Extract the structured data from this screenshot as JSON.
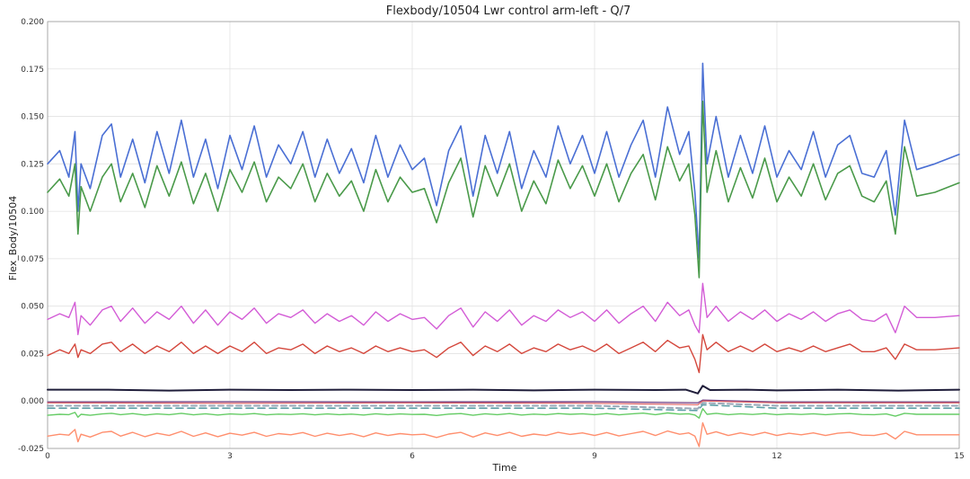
{
  "chart_data": {
    "type": "line",
    "title": "Flexbody/10504 Lwr control arm-left - Q/7",
    "xlabel": "Time",
    "ylabel": "Flex_Body/10504",
    "xlim": [
      0,
      15
    ],
    "ylim": [
      -0.025,
      0.2
    ],
    "xticks": [
      0,
      3,
      6,
      9,
      12,
      15
    ],
    "yticks": [
      -0.025,
      0.0,
      0.025,
      0.05,
      0.075,
      0.1,
      0.125,
      0.15,
      0.175,
      0.2
    ],
    "xtick_labels": [
      "0",
      "3",
      "6",
      "9",
      "12",
      "15"
    ],
    "ytick_labels": [
      "-0.025",
      "0.000",
      "0.025",
      "0.050",
      "0.075",
      "0.100",
      "0.125",
      "0.150",
      "0.175",
      "0.200"
    ],
    "grid": true,
    "legend": false,
    "series": [
      {
        "color": "#4a6fd4",
        "width": 1.6,
        "x": [
          0,
          0.2,
          0.35,
          0.45,
          0.5,
          0.55,
          0.7,
          0.9,
          1.05,
          1.2,
          1.4,
          1.6,
          1.8,
          2.0,
          2.2,
          2.4,
          2.6,
          2.8,
          3.0,
          3.2,
          3.4,
          3.6,
          3.8,
          4.0,
          4.2,
          4.4,
          4.6,
          4.8,
          5.0,
          5.2,
          5.4,
          5.6,
          5.8,
          6.0,
          6.2,
          6.4,
          6.6,
          6.8,
          7.0,
          7.2,
          7.4,
          7.6,
          7.8,
          8.0,
          8.2,
          8.4,
          8.6,
          8.8,
          9.0,
          9.2,
          9.4,
          9.6,
          9.8,
          10.0,
          10.2,
          10.4,
          10.55,
          10.65,
          10.72,
          10.78,
          10.85,
          11.0,
          11.2,
          11.4,
          11.6,
          11.8,
          12.0,
          12.2,
          12.4,
          12.6,
          12.8,
          13.0,
          13.2,
          13.4,
          13.6,
          13.8,
          13.95,
          14.1,
          14.3,
          14.6,
          15.0
        ],
        "y": [
          0.125,
          0.132,
          0.118,
          0.142,
          0.1,
          0.125,
          0.112,
          0.14,
          0.146,
          0.118,
          0.138,
          0.115,
          0.142,
          0.12,
          0.148,
          0.118,
          0.138,
          0.112,
          0.14,
          0.122,
          0.145,
          0.118,
          0.135,
          0.125,
          0.142,
          0.118,
          0.138,
          0.12,
          0.133,
          0.115,
          0.14,
          0.118,
          0.135,
          0.122,
          0.128,
          0.103,
          0.132,
          0.145,
          0.108,
          0.14,
          0.12,
          0.142,
          0.112,
          0.132,
          0.118,
          0.145,
          0.125,
          0.14,
          0.12,
          0.142,
          0.118,
          0.135,
          0.148,
          0.118,
          0.155,
          0.13,
          0.142,
          0.11,
          0.075,
          0.178,
          0.125,
          0.15,
          0.118,
          0.14,
          0.12,
          0.145,
          0.118,
          0.132,
          0.122,
          0.142,
          0.118,
          0.135,
          0.14,
          0.12,
          0.118,
          0.132,
          0.098,
          0.148,
          0.122,
          0.125,
          0.13
        ]
      },
      {
        "color": "#4a9a4a",
        "width": 1.6,
        "x": [
          0,
          0.2,
          0.35,
          0.45,
          0.5,
          0.55,
          0.7,
          0.9,
          1.05,
          1.2,
          1.4,
          1.6,
          1.8,
          2.0,
          2.2,
          2.4,
          2.6,
          2.8,
          3.0,
          3.2,
          3.4,
          3.6,
          3.8,
          4.0,
          4.2,
          4.4,
          4.6,
          4.8,
          5.0,
          5.2,
          5.4,
          5.6,
          5.8,
          6.0,
          6.2,
          6.4,
          6.6,
          6.8,
          7.0,
          7.2,
          7.4,
          7.6,
          7.8,
          8.0,
          8.2,
          8.4,
          8.6,
          8.8,
          9.0,
          9.2,
          9.4,
          9.6,
          9.8,
          10.0,
          10.2,
          10.4,
          10.55,
          10.65,
          10.72,
          10.78,
          10.85,
          11.0,
          11.2,
          11.4,
          11.6,
          11.8,
          12.0,
          12.2,
          12.4,
          12.6,
          12.8,
          13.0,
          13.2,
          13.4,
          13.6,
          13.8,
          13.95,
          14.1,
          14.3,
          14.6,
          15.0
        ],
        "y": [
          0.11,
          0.117,
          0.108,
          0.125,
          0.088,
          0.113,
          0.1,
          0.118,
          0.125,
          0.105,
          0.12,
          0.102,
          0.124,
          0.108,
          0.126,
          0.104,
          0.12,
          0.1,
          0.122,
          0.11,
          0.126,
          0.105,
          0.118,
          0.112,
          0.125,
          0.105,
          0.12,
          0.108,
          0.116,
          0.1,
          0.122,
          0.105,
          0.118,
          0.11,
          0.112,
          0.094,
          0.115,
          0.128,
          0.097,
          0.124,
          0.108,
          0.125,
          0.1,
          0.116,
          0.104,
          0.127,
          0.112,
          0.124,
          0.108,
          0.125,
          0.105,
          0.12,
          0.13,
          0.106,
          0.134,
          0.116,
          0.125,
          0.098,
          0.065,
          0.158,
          0.11,
          0.132,
          0.105,
          0.123,
          0.107,
          0.128,
          0.105,
          0.118,
          0.108,
          0.125,
          0.106,
          0.12,
          0.124,
          0.108,
          0.105,
          0.116,
          0.088,
          0.134,
          0.108,
          0.11,
          0.115
        ]
      },
      {
        "color": "#d35cd6",
        "width": 1.4,
        "x": [
          0,
          0.2,
          0.35,
          0.45,
          0.5,
          0.55,
          0.7,
          0.9,
          1.05,
          1.2,
          1.4,
          1.6,
          1.8,
          2.0,
          2.2,
          2.4,
          2.6,
          2.8,
          3.0,
          3.2,
          3.4,
          3.6,
          3.8,
          4.0,
          4.2,
          4.4,
          4.6,
          4.8,
          5.0,
          5.2,
          5.4,
          5.6,
          5.8,
          6.0,
          6.2,
          6.4,
          6.6,
          6.8,
          7.0,
          7.2,
          7.4,
          7.6,
          7.8,
          8.0,
          8.2,
          8.4,
          8.6,
          8.8,
          9.0,
          9.2,
          9.4,
          9.6,
          9.8,
          10.0,
          10.2,
          10.4,
          10.55,
          10.65,
          10.72,
          10.78,
          10.85,
          11.0,
          11.2,
          11.4,
          11.6,
          11.8,
          12.0,
          12.2,
          12.4,
          12.6,
          12.8,
          13.0,
          13.2,
          13.4,
          13.6,
          13.8,
          13.95,
          14.1,
          14.3,
          14.6,
          15.0
        ],
        "y": [
          0.043,
          0.046,
          0.044,
          0.052,
          0.035,
          0.045,
          0.04,
          0.048,
          0.05,
          0.042,
          0.049,
          0.041,
          0.047,
          0.043,
          0.05,
          0.041,
          0.048,
          0.04,
          0.047,
          0.043,
          0.049,
          0.041,
          0.046,
          0.044,
          0.048,
          0.041,
          0.046,
          0.042,
          0.045,
          0.04,
          0.047,
          0.042,
          0.046,
          0.043,
          0.044,
          0.038,
          0.045,
          0.049,
          0.039,
          0.047,
          0.042,
          0.048,
          0.04,
          0.045,
          0.042,
          0.048,
          0.044,
          0.047,
          0.042,
          0.048,
          0.041,
          0.046,
          0.05,
          0.042,
          0.052,
          0.045,
          0.048,
          0.04,
          0.036,
          0.062,
          0.044,
          0.05,
          0.042,
          0.047,
          0.043,
          0.048,
          0.042,
          0.046,
          0.043,
          0.047,
          0.042,
          0.046,
          0.048,
          0.043,
          0.042,
          0.046,
          0.036,
          0.05,
          0.044,
          0.044,
          0.045
        ]
      },
      {
        "color": "#d4473c",
        "width": 1.4,
        "x": [
          0,
          0.2,
          0.35,
          0.45,
          0.5,
          0.55,
          0.7,
          0.9,
          1.05,
          1.2,
          1.4,
          1.6,
          1.8,
          2.0,
          2.2,
          2.4,
          2.6,
          2.8,
          3.0,
          3.2,
          3.4,
          3.6,
          3.8,
          4.0,
          4.2,
          4.4,
          4.6,
          4.8,
          5.0,
          5.2,
          5.4,
          5.6,
          5.8,
          6.0,
          6.2,
          6.4,
          6.6,
          6.8,
          7.0,
          7.2,
          7.4,
          7.6,
          7.8,
          8.0,
          8.2,
          8.4,
          8.6,
          8.8,
          9.0,
          9.2,
          9.4,
          9.6,
          9.8,
          10.0,
          10.2,
          10.4,
          10.55,
          10.65,
          10.72,
          10.78,
          10.85,
          11.0,
          11.2,
          11.4,
          11.6,
          11.8,
          12.0,
          12.2,
          12.4,
          12.6,
          12.8,
          13.0,
          13.2,
          13.4,
          13.6,
          13.8,
          13.95,
          14.1,
          14.3,
          14.6,
          15.0
        ],
        "y": [
          0.024,
          0.027,
          0.025,
          0.03,
          0.023,
          0.027,
          0.025,
          0.03,
          0.031,
          0.026,
          0.03,
          0.025,
          0.029,
          0.026,
          0.031,
          0.025,
          0.029,
          0.025,
          0.029,
          0.026,
          0.031,
          0.025,
          0.028,
          0.027,
          0.03,
          0.025,
          0.029,
          0.026,
          0.028,
          0.025,
          0.029,
          0.026,
          0.028,
          0.026,
          0.027,
          0.023,
          0.028,
          0.031,
          0.024,
          0.029,
          0.026,
          0.03,
          0.025,
          0.028,
          0.026,
          0.03,
          0.027,
          0.029,
          0.026,
          0.03,
          0.025,
          0.028,
          0.031,
          0.026,
          0.032,
          0.028,
          0.029,
          0.022,
          0.015,
          0.035,
          0.027,
          0.031,
          0.026,
          0.029,
          0.026,
          0.03,
          0.026,
          0.028,
          0.026,
          0.029,
          0.026,
          0.028,
          0.03,
          0.026,
          0.026,
          0.028,
          0.022,
          0.03,
          0.027,
          0.027,
          0.028
        ]
      },
      {
        "color": "#1f1d3a",
        "width": 2.0,
        "x": [
          0,
          1,
          2,
          3,
          4,
          5,
          6,
          7,
          8,
          9,
          10,
          10.5,
          10.7,
          10.78,
          10.9,
          11.5,
          12,
          13,
          14,
          15
        ],
        "y": [
          0.006,
          0.006,
          0.0055,
          0.006,
          0.0058,
          0.006,
          0.0058,
          0.006,
          0.0056,
          0.006,
          0.0058,
          0.006,
          0.004,
          0.008,
          0.0058,
          0.006,
          0.0056,
          0.006,
          0.0055,
          0.006
        ]
      },
      {
        "color": "#7a4a8c",
        "width": 1.4,
        "x": [
          0,
          3,
          6,
          9,
          10.7,
          10.78,
          12,
          15
        ],
        "y": [
          -0.0005,
          -0.0004,
          -0.0005,
          -0.0004,
          -0.001,
          0.0005,
          -0.0005,
          -0.0005
        ]
      },
      {
        "color": "#e05f5f",
        "width": 1.1,
        "x": [
          0,
          3,
          6,
          9,
          10.7,
          10.78,
          12,
          15
        ],
        "y": [
          -0.001,
          -0.0012,
          -0.001,
          -0.0012,
          -0.002,
          0.0,
          -0.001,
          -0.001
        ]
      },
      {
        "color": "#9aa8b8",
        "width": 2.0,
        "dash": "6,4",
        "x": [
          0,
          3,
          6,
          9,
          10.7,
          10.78,
          12,
          15
        ],
        "y": [
          -0.0025,
          -0.0025,
          -0.0025,
          -0.0025,
          -0.004,
          -0.001,
          -0.0025,
          -0.0025
        ]
      },
      {
        "color": "#5fa0a8",
        "width": 1.6,
        "dash": "8,5",
        "x": [
          0,
          3,
          6,
          9,
          10.7,
          10.78,
          12,
          15
        ],
        "y": [
          -0.0038,
          -0.0038,
          -0.0038,
          -0.0038,
          -0.005,
          -0.002,
          -0.0038,
          -0.0038
        ]
      },
      {
        "color": "#66cc66",
        "width": 1.4,
        "x": [
          0,
          0.2,
          0.35,
          0.45,
          0.5,
          0.55,
          0.7,
          0.9,
          1.05,
          1.2,
          1.4,
          1.6,
          1.8,
          2.0,
          2.2,
          2.4,
          2.6,
          2.8,
          3.0,
          3.2,
          3.4,
          3.6,
          3.8,
          4.0,
          4.2,
          4.4,
          4.6,
          4.8,
          5.0,
          5.2,
          5.4,
          5.6,
          5.8,
          6.0,
          6.2,
          6.4,
          6.6,
          6.8,
          7.0,
          7.2,
          7.4,
          7.6,
          7.8,
          8.0,
          8.2,
          8.4,
          8.6,
          8.8,
          9.0,
          9.2,
          9.4,
          9.6,
          9.8,
          10.0,
          10.2,
          10.4,
          10.55,
          10.65,
          10.72,
          10.78,
          10.85,
          11.0,
          11.2,
          11.4,
          11.6,
          11.8,
          12.0,
          12.2,
          12.4,
          12.6,
          12.8,
          13.0,
          13.2,
          13.4,
          13.6,
          13.8,
          13.95,
          14.1,
          14.3,
          14.6,
          15.0
        ],
        "y": [
          -0.0075,
          -0.007,
          -0.0072,
          -0.006,
          -0.0085,
          -0.007,
          -0.0075,
          -0.0068,
          -0.0065,
          -0.0072,
          -0.0066,
          -0.0074,
          -0.0068,
          -0.0072,
          -0.0065,
          -0.0073,
          -0.0067,
          -0.0074,
          -0.0068,
          -0.0071,
          -0.0066,
          -0.0073,
          -0.0069,
          -0.0071,
          -0.0067,
          -0.0073,
          -0.0068,
          -0.0072,
          -0.0069,
          -0.0074,
          -0.0067,
          -0.0072,
          -0.0068,
          -0.0071,
          -0.007,
          -0.0076,
          -0.0069,
          -0.0066,
          -0.0075,
          -0.0067,
          -0.0072,
          -0.0066,
          -0.0074,
          -0.0069,
          -0.0072,
          -0.0066,
          -0.007,
          -0.0067,
          -0.0072,
          -0.0066,
          -0.0073,
          -0.0068,
          -0.0064,
          -0.0072,
          -0.0063,
          -0.0069,
          -0.0067,
          -0.0074,
          -0.009,
          -0.004,
          -0.007,
          -0.0065,
          -0.0072,
          -0.0067,
          -0.0071,
          -0.0066,
          -0.0072,
          -0.0068,
          -0.0071,
          -0.0067,
          -0.0072,
          -0.0068,
          -0.0066,
          -0.0071,
          -0.0072,
          -0.0068,
          -0.008,
          -0.0065,
          -0.007,
          -0.007,
          -0.007
        ]
      },
      {
        "color": "#ff8f6e",
        "width": 1.4,
        "x": [
          0,
          0.2,
          0.35,
          0.45,
          0.5,
          0.55,
          0.7,
          0.9,
          1.05,
          1.2,
          1.4,
          1.6,
          1.8,
          2.0,
          2.2,
          2.4,
          2.6,
          2.8,
          3.0,
          3.2,
          3.4,
          3.6,
          3.8,
          4.0,
          4.2,
          4.4,
          4.6,
          4.8,
          5.0,
          5.2,
          5.4,
          5.6,
          5.8,
          6.0,
          6.2,
          6.4,
          6.6,
          6.8,
          7.0,
          7.2,
          7.4,
          7.6,
          7.8,
          8.0,
          8.2,
          8.4,
          8.6,
          8.8,
          9.0,
          9.2,
          9.4,
          9.6,
          9.8,
          10.0,
          10.2,
          10.4,
          10.55,
          10.65,
          10.72,
          10.78,
          10.85,
          11.0,
          11.2,
          11.4,
          11.6,
          11.8,
          12.0,
          12.2,
          12.4,
          12.6,
          12.8,
          13.0,
          13.2,
          13.4,
          13.6,
          13.8,
          13.95,
          14.1,
          14.3,
          14.6,
          15.0
        ],
        "y": [
          -0.0185,
          -0.0175,
          -0.018,
          -0.015,
          -0.0215,
          -0.0175,
          -0.019,
          -0.0165,
          -0.016,
          -0.0185,
          -0.0165,
          -0.0188,
          -0.017,
          -0.0182,
          -0.016,
          -0.0186,
          -0.0168,
          -0.0188,
          -0.017,
          -0.018,
          -0.0165,
          -0.0186,
          -0.0172,
          -0.0178,
          -0.0166,
          -0.0186,
          -0.017,
          -0.0182,
          -0.0172,
          -0.0188,
          -0.0168,
          -0.0182,
          -0.0172,
          -0.0178,
          -0.0175,
          -0.0192,
          -0.0174,
          -0.0165,
          -0.019,
          -0.0168,
          -0.0182,
          -0.0165,
          -0.0186,
          -0.0174,
          -0.0182,
          -0.0165,
          -0.0176,
          -0.0168,
          -0.0182,
          -0.0166,
          -0.0184,
          -0.0172,
          -0.016,
          -0.0182,
          -0.0158,
          -0.0175,
          -0.0168,
          -0.0185,
          -0.024,
          -0.0115,
          -0.0175,
          -0.0162,
          -0.0182,
          -0.0168,
          -0.018,
          -0.0165,
          -0.0182,
          -0.017,
          -0.0178,
          -0.0168,
          -0.0182,
          -0.017,
          -0.0165,
          -0.018,
          -0.0182,
          -0.017,
          -0.02,
          -0.016,
          -0.0178,
          -0.0178,
          -0.0178
        ]
      }
    ]
  }
}
